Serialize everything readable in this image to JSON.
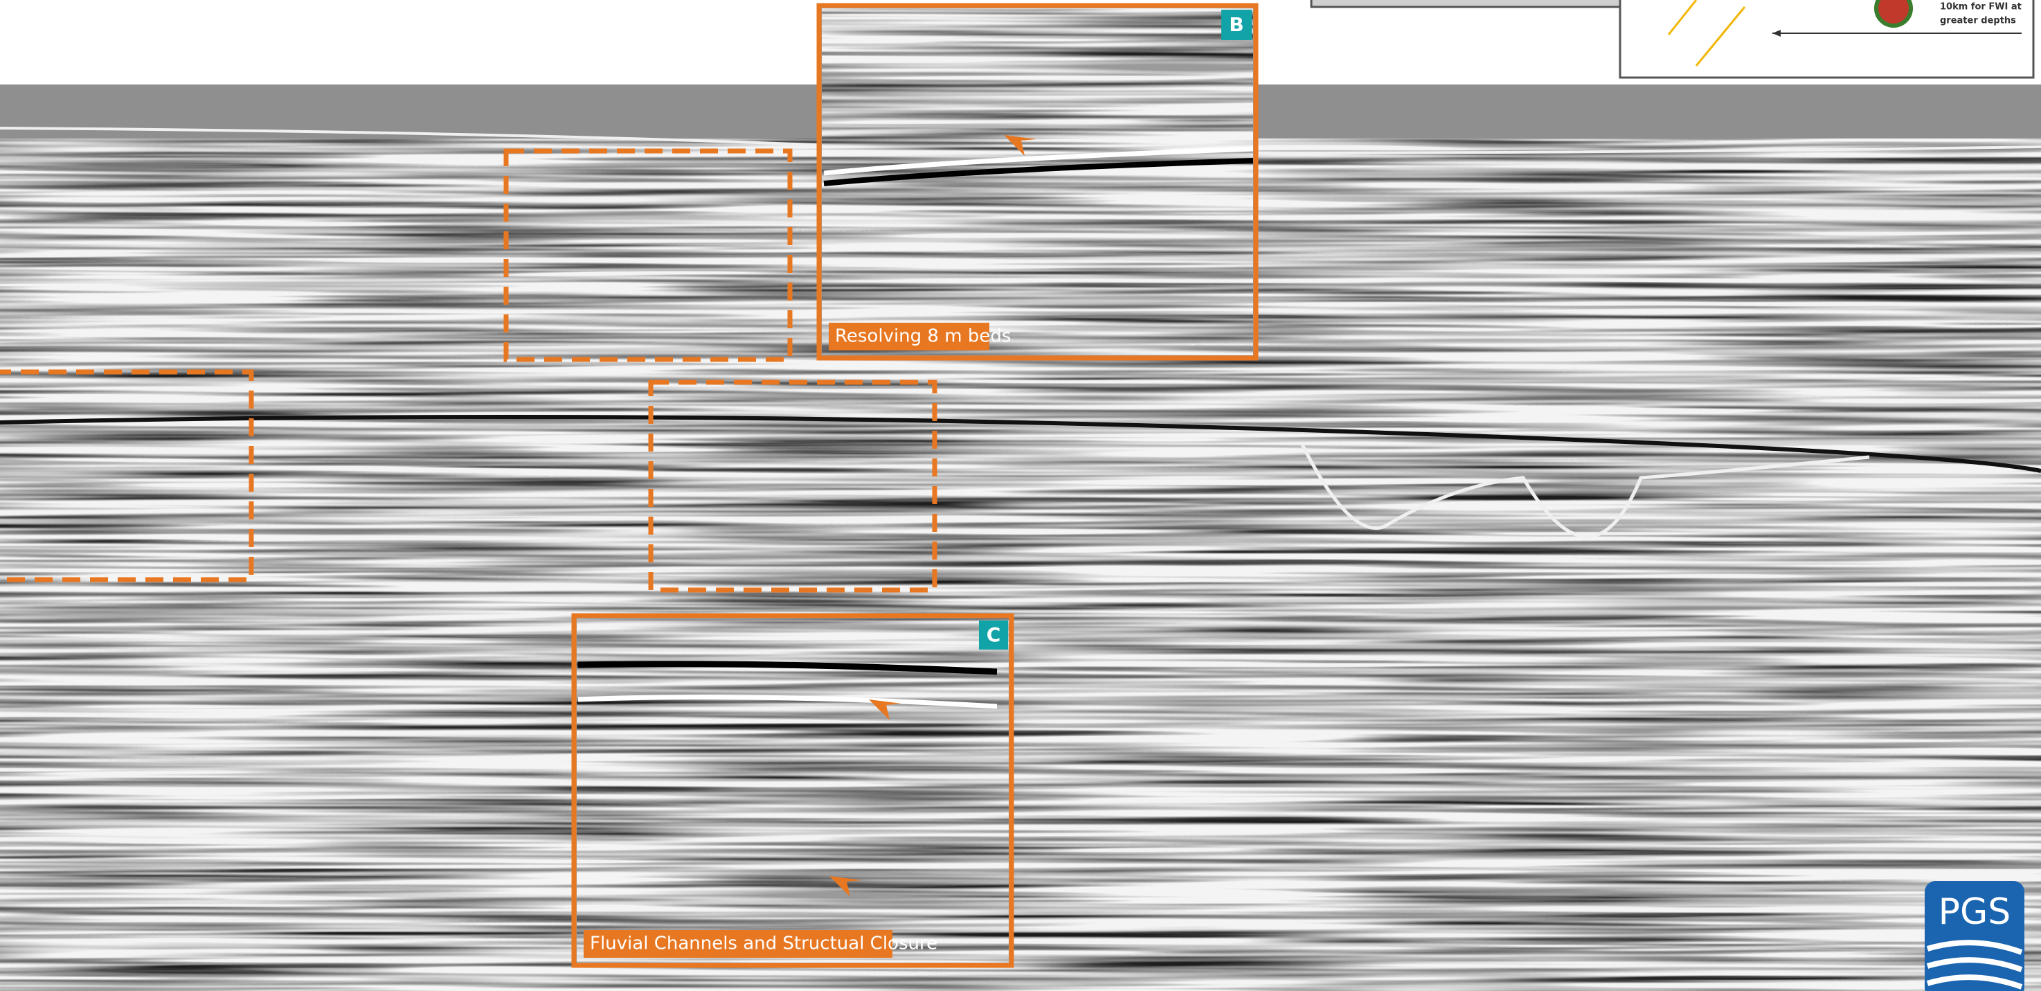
{
  "insets": [
    {
      "badge": "B",
      "caption": "Resolving 8 m beds"
    },
    {
      "badge": "C",
      "caption": "Fluvial Channels and Structual Closure"
    }
  ],
  "legend": {
    "line1": "10km for FWI at",
    "line2": "greater depths"
  },
  "logo": "PGS"
}
